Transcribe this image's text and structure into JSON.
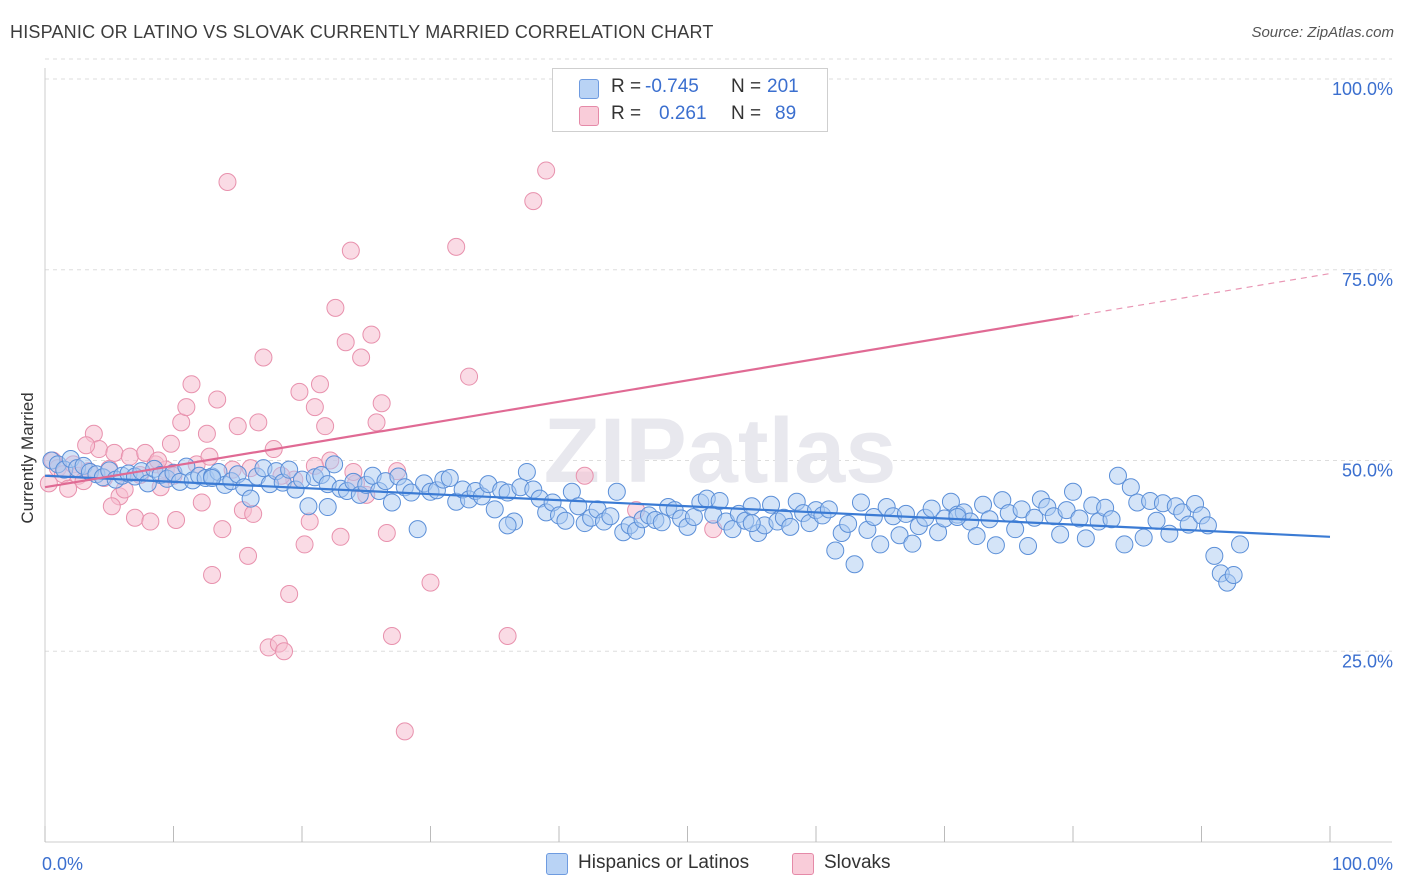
{
  "title": "HISPANIC OR LATINO VS SLOVAK CURRENTLY MARRIED CORRELATION CHART",
  "source": "Source: ZipAtlas.com",
  "watermark": "ZIPatlas",
  "legend": {
    "series1": {
      "r_label": "R =",
      "r_value": "-0.745",
      "n_label": "N =",
      "n_value": "201",
      "color": "#a8c8f0"
    },
    "series2": {
      "r_label": "R =",
      "r_value": "0.261",
      "n_label": "N =",
      "n_value": "89",
      "color": "#f5b8c8"
    }
  },
  "bottom_legend": {
    "series1": "Hispanics or Latinos",
    "series2": "Slovaks"
  },
  "colors": {
    "blue": "#3b7bd4",
    "blue_fill": "#a9c9f2",
    "pink": "#e06a94",
    "pink_fill": "#f6bdd0",
    "tick_text": "#3b6fcf",
    "grid": "#dddddd"
  },
  "chart_data": {
    "type": "scatter",
    "title": "HISPANIC OR LATINO VS SLOVAK CURRENTLY MARRIED CORRELATION CHART",
    "xlabel": "",
    "ylabel": "Currently Married",
    "xlim": [
      0,
      100
    ],
    "ylim": [
      0,
      105
    ],
    "x_tick_labels": [
      "0.0%",
      "100.0%"
    ],
    "y_ticks": [
      25,
      50,
      75,
      100
    ],
    "y_tick_labels": [
      "25.0%",
      "50.0%",
      "75.0%",
      "100.0%"
    ],
    "grid": true,
    "series": [
      {
        "name": "Hispanics or Latinos",
        "r": -0.745,
        "n": 201,
        "trend": {
          "x0": 0,
          "y0": 48.0,
          "x1": 100,
          "y1": 40.0
        },
        "points": [
          [
            0.5,
            50.0
          ],
          [
            1.0,
            49.5
          ],
          [
            1.5,
            48.8
          ],
          [
            2.0,
            50.2
          ],
          [
            2.5,
            49.0
          ],
          [
            3.0,
            49.3
          ],
          [
            3.5,
            48.5
          ],
          [
            4.0,
            48.2
          ],
          [
            4.5,
            47.8
          ],
          [
            5.0,
            48.7
          ],
          [
            5.5,
            47.5
          ],
          [
            6.0,
            48.0
          ],
          [
            6.5,
            48.3
          ],
          [
            7.0,
            47.9
          ],
          [
            7.5,
            48.6
          ],
          [
            8.0,
            47.0
          ],
          [
            8.5,
            48.9
          ],
          [
            9.0,
            48.1
          ],
          [
            9.5,
            47.6
          ],
          [
            10.0,
            48.4
          ],
          [
            10.5,
            47.2
          ],
          [
            11.0,
            49.2
          ],
          [
            11.5,
            47.4
          ],
          [
            12.0,
            48.0
          ],
          [
            12.5,
            47.7
          ],
          [
            13.0,
            47.9
          ],
          [
            13.5,
            48.5
          ],
          [
            14.0,
            46.8
          ],
          [
            14.5,
            47.3
          ],
          [
            15.0,
            48.2
          ],
          [
            15.5,
            46.5
          ],
          [
            16.0,
            45.0
          ],
          [
            16.5,
            47.9
          ],
          [
            17.0,
            49.0
          ],
          [
            17.5,
            46.9
          ],
          [
            18.0,
            48.6
          ],
          [
            18.5,
            47.1
          ],
          [
            19.0,
            48.8
          ],
          [
            19.5,
            46.2
          ],
          [
            20.0,
            47.5
          ],
          [
            20.5,
            44.0
          ],
          [
            21.0,
            47.8
          ],
          [
            21.5,
            48.1
          ],
          [
            22.0,
            46.9
          ],
          [
            22.5,
            49.5
          ],
          [
            23.0,
            46.3
          ],
          [
            23.5,
            46.0
          ],
          [
            24.0,
            47.2
          ],
          [
            24.5,
            45.5
          ],
          [
            25.0,
            46.8
          ],
          [
            25.5,
            48.0
          ],
          [
            26.0,
            46.0
          ],
          [
            26.5,
            47.3
          ],
          [
            27.0,
            44.5
          ],
          [
            27.5,
            47.9
          ],
          [
            28.0,
            46.5
          ],
          [
            28.5,
            45.8
          ],
          [
            29.0,
            41.0
          ],
          [
            29.5,
            47.0
          ],
          [
            30.0,
            45.9
          ],
          [
            30.5,
            46.1
          ],
          [
            31.0,
            47.5
          ],
          [
            31.5,
            47.7
          ],
          [
            32.0,
            44.6
          ],
          [
            32.5,
            46.2
          ],
          [
            33.0,
            44.9
          ],
          [
            33.5,
            46.0
          ],
          [
            34.0,
            45.3
          ],
          [
            34.5,
            46.9
          ],
          [
            35.0,
            43.6
          ],
          [
            35.5,
            46.1
          ],
          [
            36.0,
            45.8
          ],
          [
            36.5,
            42.0
          ],
          [
            37.0,
            46.5
          ],
          [
            37.5,
            48.5
          ],
          [
            38.0,
            46.2
          ],
          [
            38.5,
            45.0
          ],
          [
            39.0,
            43.2
          ],
          [
            39.5,
            44.5
          ],
          [
            40.0,
            42.8
          ],
          [
            40.5,
            42.1
          ],
          [
            41.0,
            45.9
          ],
          [
            41.5,
            44.0
          ],
          [
            42.0,
            41.8
          ],
          [
            42.5,
            42.5
          ],
          [
            43.0,
            43.6
          ],
          [
            43.5,
            42.0
          ],
          [
            44.0,
            42.7
          ],
          [
            44.5,
            45.9
          ],
          [
            45.0,
            40.6
          ],
          [
            45.5,
            41.5
          ],
          [
            46.0,
            40.8
          ],
          [
            46.5,
            42.3
          ],
          [
            47.0,
            42.8
          ],
          [
            47.5,
            42.2
          ],
          [
            48.0,
            41.9
          ],
          [
            48.5,
            43.9
          ],
          [
            49.0,
            43.5
          ],
          [
            49.5,
            42.4
          ],
          [
            50.0,
            41.3
          ],
          [
            50.5,
            42.6
          ],
          [
            51.0,
            44.5
          ],
          [
            51.5,
            45.0
          ],
          [
            52.0,
            42.9
          ],
          [
            52.5,
            44.7
          ],
          [
            53.0,
            42.0
          ],
          [
            53.5,
            41.0
          ],
          [
            54.0,
            43.0
          ],
          [
            54.5,
            42.1
          ],
          [
            55.0,
            44.0
          ],
          [
            55.5,
            40.5
          ],
          [
            56.0,
            41.5
          ],
          [
            56.5,
            44.2
          ],
          [
            57.0,
            42.0
          ],
          [
            57.5,
            42.5
          ],
          [
            58.0,
            41.3
          ],
          [
            58.5,
            44.6
          ],
          [
            59.0,
            43.1
          ],
          [
            59.5,
            41.8
          ],
          [
            60.0,
            43.5
          ],
          [
            60.5,
            42.8
          ],
          [
            61.0,
            43.6
          ],
          [
            61.5,
            38.2
          ],
          [
            62.0,
            40.5
          ],
          [
            62.5,
            41.7
          ],
          [
            63.0,
            36.4
          ],
          [
            63.5,
            44.5
          ],
          [
            64.0,
            40.9
          ],
          [
            64.5,
            42.6
          ],
          [
            65.0,
            39.0
          ],
          [
            65.5,
            43.9
          ],
          [
            66.0,
            42.7
          ],
          [
            66.5,
            40.2
          ],
          [
            67.0,
            43.0
          ],
          [
            67.5,
            39.1
          ],
          [
            68.0,
            41.4
          ],
          [
            68.5,
            42.5
          ],
          [
            69.0,
            43.7
          ],
          [
            69.5,
            40.6
          ],
          [
            70.0,
            42.4
          ],
          [
            70.5,
            44.6
          ],
          [
            71.0,
            42.9
          ],
          [
            71.5,
            43.2
          ],
          [
            72.0,
            42.0
          ],
          [
            72.5,
            40.1
          ],
          [
            73.0,
            44.2
          ],
          [
            73.5,
            42.3
          ],
          [
            74.0,
            38.9
          ],
          [
            74.5,
            44.8
          ],
          [
            75.0,
            43.1
          ],
          [
            75.5,
            41.0
          ],
          [
            76.0,
            43.6
          ],
          [
            76.5,
            38.8
          ],
          [
            77.0,
            42.5
          ],
          [
            77.5,
            44.9
          ],
          [
            78.0,
            43.9
          ],
          [
            78.5,
            42.7
          ],
          [
            79.0,
            40.3
          ],
          [
            79.5,
            43.5
          ],
          [
            80.0,
            45.9
          ],
          [
            80.5,
            42.4
          ],
          [
            81.0,
            39.8
          ],
          [
            81.5,
            44.1
          ],
          [
            82.0,
            42.0
          ],
          [
            82.5,
            43.8
          ],
          [
            83.0,
            42.3
          ],
          [
            83.5,
            48.0
          ],
          [
            84.0,
            39.0
          ],
          [
            84.5,
            46.5
          ],
          [
            85.0,
            44.5
          ],
          [
            85.5,
            39.9
          ],
          [
            86.0,
            44.7
          ],
          [
            86.5,
            42.1
          ],
          [
            87.0,
            44.4
          ],
          [
            87.5,
            40.4
          ],
          [
            88.0,
            44.0
          ],
          [
            88.5,
            43.2
          ],
          [
            89.0,
            41.6
          ],
          [
            89.5,
            44.3
          ],
          [
            90.0,
            42.8
          ],
          [
            90.5,
            41.5
          ],
          [
            91.0,
            37.5
          ],
          [
            91.5,
            35.2
          ],
          [
            92.0,
            34.0
          ],
          [
            92.5,
            35.0
          ],
          [
            93.0,
            39.0
          ],
          [
            22.0,
            43.9
          ],
          [
            13.0,
            47.7
          ],
          [
            36.0,
            41.5
          ],
          [
            55.0,
            41.8
          ],
          [
            71.0,
            42.6
          ]
        ]
      },
      {
        "name": "Slovaks",
        "r": 0.261,
        "n": 89,
        "trend": {
          "x0": 0,
          "y0": 46.5,
          "x1": 100,
          "y1": 74.5,
          "solid_to_x": 80
        },
        "points": [
          [
            0.3,
            47.0
          ],
          [
            0.6,
            50.0
          ],
          [
            1.0,
            49.0
          ],
          [
            1.4,
            48.2
          ],
          [
            1.8,
            46.3
          ],
          [
            2.2,
            49.5
          ],
          [
            2.6,
            48.0
          ],
          [
            3.0,
            47.3
          ],
          [
            3.4,
            48.6
          ],
          [
            3.8,
            53.5
          ],
          [
            4.2,
            51.5
          ],
          [
            4.6,
            47.7
          ],
          [
            5.0,
            48.9
          ],
          [
            5.4,
            51.0
          ],
          [
            5.8,
            45.3
          ],
          [
            6.2,
            46.2
          ],
          [
            6.6,
            50.5
          ],
          [
            7.0,
            42.5
          ],
          [
            7.4,
            48.1
          ],
          [
            7.8,
            51.0
          ],
          [
            8.2,
            42.0
          ],
          [
            8.6,
            49.5
          ],
          [
            9.0,
            46.5
          ],
          [
            9.4,
            48.8
          ],
          [
            9.8,
            52.2
          ],
          [
            10.2,
            42.2
          ],
          [
            10.6,
            55.0
          ],
          [
            11.0,
            57.0
          ],
          [
            11.4,
            60.0
          ],
          [
            11.8,
            49.5
          ],
          [
            12.2,
            44.5
          ],
          [
            12.6,
            53.5
          ],
          [
            13.0,
            35.0
          ],
          [
            13.4,
            58.0
          ],
          [
            13.8,
            41.0
          ],
          [
            14.2,
            86.5
          ],
          [
            14.6,
            48.8
          ],
          [
            15.0,
            54.5
          ],
          [
            15.4,
            43.5
          ],
          [
            15.8,
            37.5
          ],
          [
            16.2,
            43.0
          ],
          [
            16.6,
            55.0
          ],
          [
            17.0,
            63.5
          ],
          [
            17.4,
            25.5
          ],
          [
            17.8,
            51.5
          ],
          [
            18.2,
            26.0
          ],
          [
            18.6,
            25.0
          ],
          [
            19.0,
            32.5
          ],
          [
            19.4,
            47.5
          ],
          [
            19.8,
            59.0
          ],
          [
            20.2,
            39.0
          ],
          [
            20.6,
            42.0
          ],
          [
            21.0,
            57.0
          ],
          [
            21.4,
            60.0
          ],
          [
            21.8,
            54.5
          ],
          [
            22.2,
            50.0
          ],
          [
            22.6,
            70.0
          ],
          [
            23.0,
            40.0
          ],
          [
            23.4,
            65.5
          ],
          [
            23.8,
            77.5
          ],
          [
            24.2,
            47.0
          ],
          [
            24.6,
            63.5
          ],
          [
            25.0,
            45.5
          ],
          [
            25.4,
            66.5
          ],
          [
            25.8,
            55.0
          ],
          [
            26.2,
            57.5
          ],
          [
            26.6,
            40.5
          ],
          [
            27.0,
            27.0
          ],
          [
            27.4,
            48.6
          ],
          [
            28.0,
            14.5
          ],
          [
            30.0,
            34.0
          ],
          [
            32.0,
            78.0
          ],
          [
            33.0,
            61.0
          ],
          [
            36.0,
            27.0
          ],
          [
            38.0,
            84.0
          ],
          [
            39.0,
            88.0
          ],
          [
            41.0,
            99.5
          ],
          [
            42.0,
            48.0
          ],
          [
            46.0,
            43.5
          ],
          [
            52.0,
            41.0
          ],
          [
            5.2,
            44.0
          ],
          [
            3.2,
            52.0
          ],
          [
            8.8,
            50.0
          ],
          [
            10.0,
            48.0
          ],
          [
            12.8,
            50.5
          ],
          [
            16.0,
            49.0
          ],
          [
            18.4,
            48.0
          ],
          [
            21.0,
            49.3
          ],
          [
            24.0,
            48.5
          ]
        ]
      }
    ]
  }
}
